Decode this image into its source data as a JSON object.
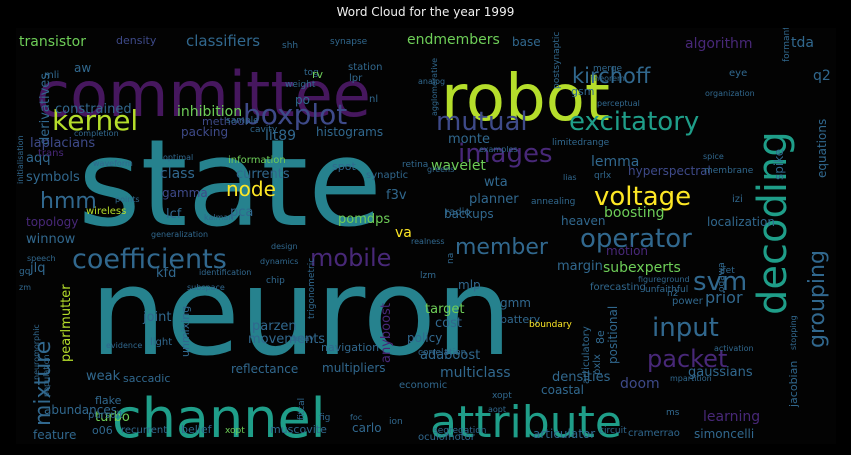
{
  "title": "Word Cloud for the year 1999",
  "palette": {
    "dark_purple": "#46175e",
    "purple": "#482878",
    "indigo": "#3e4a89",
    "blue": "#31688e",
    "teal": "#26828e",
    "green_teal": "#1f9e89",
    "green": "#35b779",
    "lime": "#6ece58",
    "yellow_green": "#b5de2b",
    "yellow": "#fde725"
  },
  "words": [
    {
      "text": "state",
      "color": "teal"
    },
    {
      "text": "neuron",
      "color": "teal"
    },
    {
      "text": "committee",
      "color": "dark_purple"
    },
    {
      "text": "robot",
      "color": "yellow_green"
    },
    {
      "text": "channel",
      "color": "green_teal"
    },
    {
      "text": "attribute",
      "color": "green_teal"
    },
    {
      "text": "decoding",
      "color": "green_teal"
    },
    {
      "text": "coefficients",
      "color": "blue"
    },
    {
      "text": "kernel",
      "color": "yellow_green"
    },
    {
      "text": "boxplot",
      "color": "indigo"
    },
    {
      "text": "mutual",
      "color": "indigo"
    },
    {
      "text": "excitatory",
      "color": "green_teal"
    },
    {
      "text": "images",
      "color": "purple"
    },
    {
      "text": "voltage",
      "color": "yellow"
    },
    {
      "text": "operator",
      "color": "blue"
    },
    {
      "text": "mobile",
      "color": "purple"
    },
    {
      "text": "member",
      "color": "blue"
    },
    {
      "text": "svm",
      "color": "blue"
    },
    {
      "text": "grouping",
      "color": "blue"
    },
    {
      "text": "input",
      "color": "blue"
    },
    {
      "text": "packet",
      "color": "purple"
    },
    {
      "text": "mixture",
      "color": "blue"
    },
    {
      "text": "hmm",
      "color": "blue"
    },
    {
      "text": "kirchoff",
      "color": "blue"
    },
    {
      "text": "transistor",
      "color": "lime"
    },
    {
      "text": "classifiers",
      "color": "blue"
    },
    {
      "text": "endmembers",
      "color": "lime"
    },
    {
      "text": "density",
      "color": "indigo"
    },
    {
      "text": "base",
      "color": "blue"
    },
    {
      "text": "algorithm",
      "color": "purple"
    },
    {
      "text": "tda",
      "color": "blue"
    },
    {
      "text": "aw",
      "color": "blue"
    },
    {
      "text": "mli",
      "color": "blue"
    },
    {
      "text": "q2",
      "color": "blue"
    },
    {
      "text": "inhibition",
      "color": "lime"
    },
    {
      "text": "constrained",
      "color": "blue"
    },
    {
      "text": "method",
      "color": "indigo"
    },
    {
      "text": "packing",
      "color": "indigo"
    },
    {
      "text": "sample",
      "color": "blue"
    },
    {
      "text": "derivatives",
      "color": "blue"
    },
    {
      "text": "laplacians",
      "color": "indigo"
    },
    {
      "text": "aqq",
      "color": "blue"
    },
    {
      "text": "lit89",
      "color": "blue"
    },
    {
      "text": "histograms",
      "color": "blue"
    },
    {
      "text": "monte",
      "color": "blue"
    },
    {
      "text": "lemma",
      "color": "blue"
    },
    {
      "text": "wavelet",
      "color": "lime"
    },
    {
      "text": "hyperspectral",
      "color": "indigo"
    },
    {
      "text": "spike",
      "color": "blue"
    },
    {
      "text": "equations",
      "color": "blue"
    },
    {
      "text": "symbols",
      "color": "blue"
    },
    {
      "text": "class",
      "color": "blue"
    },
    {
      "text": "currents",
      "color": "blue"
    },
    {
      "text": "gamma",
      "color": "indigo"
    },
    {
      "text": "information",
      "color": "lime"
    },
    {
      "text": "f3v",
      "color": "blue"
    },
    {
      "text": "wta",
      "color": "blue"
    },
    {
      "text": "planner",
      "color": "blue"
    },
    {
      "text": "boosting",
      "color": "lime"
    },
    {
      "text": "topology",
      "color": "purple"
    },
    {
      "text": "node",
      "color": "yellow"
    },
    {
      "text": "lcf",
      "color": "blue"
    },
    {
      "text": "pca",
      "color": "blue"
    },
    {
      "text": "pomdps",
      "color": "lime"
    },
    {
      "text": "backups",
      "color": "blue"
    },
    {
      "text": "heaven",
      "color": "blue"
    },
    {
      "text": "localization",
      "color": "blue"
    },
    {
      "text": "winnow",
      "color": "blue"
    },
    {
      "text": "wireless",
      "color": "yellow_green"
    },
    {
      "text": "va",
      "color": "yellow"
    },
    {
      "text": "subexperts",
      "color": "lime"
    },
    {
      "text": "jlq",
      "color": "blue"
    },
    {
      "text": "kfd",
      "color": "blue"
    },
    {
      "text": "margin",
      "color": "blue"
    },
    {
      "text": "prior",
      "color": "blue"
    },
    {
      "text": "target",
      "color": "lime"
    },
    {
      "text": "mlp",
      "color": "blue"
    },
    {
      "text": "gmm",
      "color": "blue"
    },
    {
      "text": "cost",
      "color": "blue"
    },
    {
      "text": "anyboost",
      "color": "purple"
    },
    {
      "text": "joint",
      "color": "blue"
    },
    {
      "text": "parzen",
      "color": "blue"
    },
    {
      "text": "pearlmutter",
      "color": "yellow_green"
    },
    {
      "text": "unmixing",
      "color": "blue"
    },
    {
      "text": "movements",
      "color": "blue"
    },
    {
      "text": "navigation",
      "color": "blue"
    },
    {
      "text": "policy",
      "color": "blue"
    },
    {
      "text": "adaboost",
      "color": "blue"
    },
    {
      "text": "weak",
      "color": "blue"
    },
    {
      "text": "reflectance",
      "color": "blue"
    },
    {
      "text": "multipliers",
      "color": "blue"
    },
    {
      "text": "multiclass",
      "color": "blue"
    },
    {
      "text": "densities",
      "color": "blue"
    },
    {
      "text": "gaussians",
      "color": "blue"
    },
    {
      "text": "doom",
      "color": "indigo"
    },
    {
      "text": "coastal",
      "color": "blue"
    },
    {
      "text": "abundances",
      "color": "blue"
    },
    {
      "text": "turbo",
      "color": "lime"
    },
    {
      "text": "feature",
      "color": "blue"
    },
    {
      "text": "o06",
      "color": "blue"
    },
    {
      "text": "recurrent",
      "color": "blue"
    },
    {
      "text": "belief",
      "color": "blue"
    },
    {
      "text": "muscovite",
      "color": "blue"
    },
    {
      "text": "carlo",
      "color": "blue"
    },
    {
      "text": "articulator",
      "color": "blue"
    },
    {
      "text": "simoncelli",
      "color": "blue"
    },
    {
      "text": "learning",
      "color": "purple"
    },
    {
      "text": "jacobian",
      "color": "blue"
    },
    {
      "text": "oculomotor",
      "color": "blue"
    },
    {
      "text": "cramerrao",
      "color": "blue"
    },
    {
      "text": "xopt",
      "color": "lime"
    },
    {
      "text": "saccadic",
      "color": "blue"
    },
    {
      "text": "flake",
      "color": "blue"
    },
    {
      "text": "pursuit",
      "color": "blue"
    },
    {
      "text": "positional",
      "color": "blue"
    },
    {
      "text": "articulatory",
      "color": "blue"
    },
    {
      "text": "pxlx",
      "color": "blue"
    },
    {
      "text": "8e",
      "color": "blue"
    },
    {
      "text": "tog",
      "color": "blue"
    },
    {
      "text": "po",
      "color": "blue"
    },
    {
      "text": "rv",
      "color": "lime"
    },
    {
      "text": "shh",
      "color": "blue"
    },
    {
      "text": "station",
      "color": "blue"
    },
    {
      "text": "lpr",
      "color": "blue"
    },
    {
      "text": "nl",
      "color": "blue"
    },
    {
      "text": "synapse",
      "color": "blue"
    },
    {
      "text": "gsm",
      "color": "blue"
    },
    {
      "text": "merge",
      "color": "blue"
    },
    {
      "text": "theorem",
      "color": "blue"
    },
    {
      "text": "eye",
      "color": "blue"
    },
    {
      "text": "spot",
      "color": "blue"
    },
    {
      "text": "synaptic",
      "color": "blue"
    },
    {
      "text": "retina",
      "color": "blue"
    },
    {
      "text": "qrlx",
      "color": "blue"
    },
    {
      "text": "radio",
      "color": "blue"
    },
    {
      "text": "annealing",
      "color": "blue"
    },
    {
      "text": "motion",
      "color": "purple"
    },
    {
      "text": "lzm",
      "color": "blue"
    },
    {
      "text": "na",
      "color": "blue"
    },
    {
      "text": "figureground",
      "color": "blue"
    },
    {
      "text": "forecasting",
      "color": "blue"
    },
    {
      "text": "unfaithful",
      "color": "blue"
    },
    {
      "text": "jfet",
      "color": "blue"
    },
    {
      "text": "power",
      "color": "blue"
    },
    {
      "text": "n2",
      "color": "blue"
    },
    {
      "text": "ogawa",
      "color": "blue"
    },
    {
      "text": "battery",
      "color": "blue"
    },
    {
      "text": "boundary",
      "color": "yellow"
    },
    {
      "text": "correlation",
      "color": "blue"
    },
    {
      "text": "economic",
      "color": "blue"
    },
    {
      "text": "ion",
      "color": "blue"
    },
    {
      "text": "segregation",
      "color": "blue"
    },
    {
      "text": "circuit",
      "color": "blue"
    },
    {
      "text": "ms",
      "color": "blue"
    },
    {
      "text": "izi",
      "color": "blue"
    },
    {
      "text": "membrane",
      "color": "blue"
    },
    {
      "text": "spice",
      "color": "blue"
    },
    {
      "text": "limitedrange",
      "color": "blue"
    },
    {
      "text": "weight",
      "color": "blue"
    },
    {
      "text": "analog",
      "color": "blue"
    },
    {
      "text": "perceptual",
      "color": "blue"
    },
    {
      "text": "formant",
      "color": "blue"
    },
    {
      "text": "organization",
      "color": "blue"
    },
    {
      "text": "cavity",
      "color": "blue"
    },
    {
      "text": "completion",
      "color": "blue"
    },
    {
      "text": "waveform",
      "color": "blue"
    },
    {
      "text": "optimal",
      "color": "blue"
    },
    {
      "text": "kalman",
      "color": "blue"
    },
    {
      "text": "points",
      "color": "blue"
    },
    {
      "text": "generalization",
      "color": "blue"
    },
    {
      "text": "design",
      "color": "blue"
    },
    {
      "text": "dynamics",
      "color": "blue"
    },
    {
      "text": "realness",
      "color": "blue"
    },
    {
      "text": "identification",
      "color": "blue"
    },
    {
      "text": "speech",
      "color": "blue"
    },
    {
      "text": "subspace",
      "color": "blue"
    },
    {
      "text": "evidence",
      "color": "blue"
    },
    {
      "text": "decay",
      "color": "blue"
    },
    {
      "text": "activation",
      "color": "blue"
    },
    {
      "text": "stopping",
      "color": "blue"
    },
    {
      "text": "mpartition",
      "color": "blue"
    },
    {
      "text": "initialisation",
      "color": "blue"
    },
    {
      "text": "trigonometric",
      "color": "blue"
    },
    {
      "text": "postsynaptic",
      "color": "blue"
    },
    {
      "text": "agglomerative",
      "color": "blue"
    },
    {
      "text": "examples",
      "color": "blue"
    },
    {
      "text": "greens",
      "color": "blue"
    },
    {
      "text": "neuromorphic",
      "color": "blue"
    },
    {
      "text": "population",
      "color": "blue"
    },
    {
      "text": "chip",
      "color": "blue"
    },
    {
      "text": "lias",
      "color": "blue"
    },
    {
      "text": "trans",
      "color": "purple"
    },
    {
      "text": "light",
      "color": "blue"
    },
    {
      "text": "fig",
      "color": "blue"
    },
    {
      "text": "fitcal",
      "color": "blue"
    },
    {
      "text": "foc",
      "color": "blue"
    },
    {
      "text": "xopt",
      "color": "blue"
    },
    {
      "text": "aopt",
      "color": "blue"
    },
    {
      "text": "zm",
      "color": "blue"
    },
    {
      "text": "gq",
      "color": "blue"
    }
  ]
}
